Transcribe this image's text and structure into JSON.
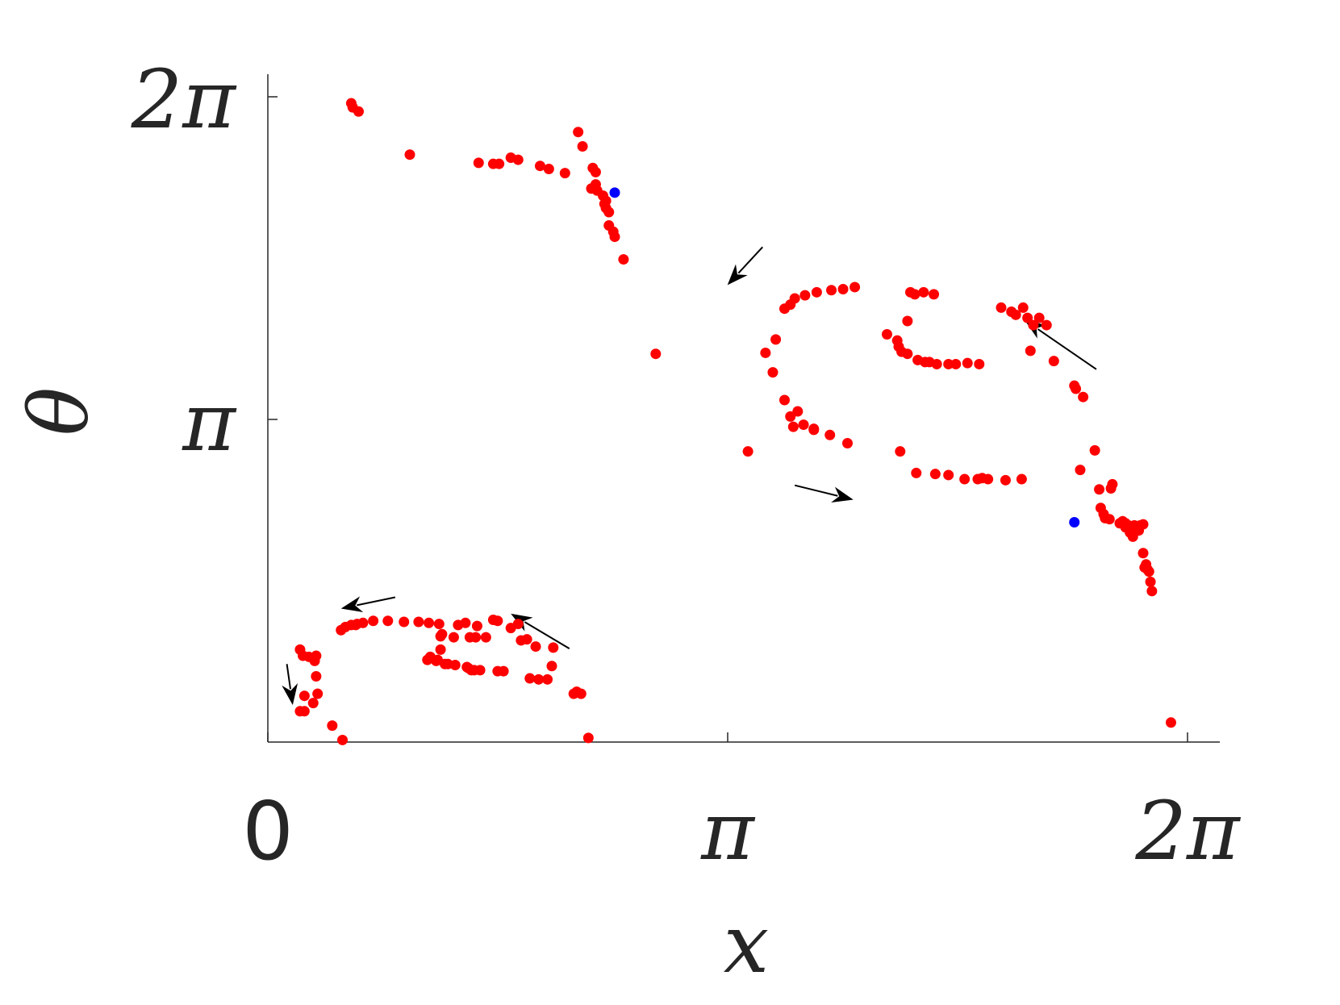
{
  "chart_data": {
    "type": "scatter",
    "title": "",
    "xlabel": "x",
    "ylabel": "θ",
    "xlim": [
      0,
      6.5
    ],
    "ylim": [
      0,
      6.5
    ],
    "grid": false,
    "legend": "none",
    "x_ticks": [
      {
        "value": 0,
        "label": "0"
      },
      {
        "value": 3.14159,
        "label": "π"
      },
      {
        "value": 6.28319,
        "label": "2π"
      }
    ],
    "y_ticks": [
      {
        "value": 3.14159,
        "label": "π"
      },
      {
        "value": 6.28319,
        "label": "2π"
      }
    ],
    "colors": {
      "red_points": "#ff0000",
      "blue_points": "#0000ff",
      "axis": "#262626",
      "arrows": "#000000"
    },
    "series": [
      {
        "color": "#ff0000",
        "points": [
          [
            0.57,
            6.22
          ],
          [
            0.58,
            6.18
          ],
          [
            0.62,
            6.14
          ],
          [
            0.97,
            5.72
          ],
          [
            1.44,
            5.64
          ],
          [
            1.54,
            5.63
          ],
          [
            1.58,
            5.63
          ],
          [
            1.66,
            5.69
          ],
          [
            1.71,
            5.67
          ],
          [
            1.86,
            5.61
          ],
          [
            1.92,
            5.58
          ],
          [
            2.03,
            5.54
          ],
          [
            2.12,
            5.94
          ],
          [
            2.15,
            5.8
          ],
          [
            2.22,
            5.59
          ],
          [
            2.24,
            5.55
          ],
          [
            2.24,
            5.43
          ],
          [
            2.21,
            5.39
          ],
          [
            2.25,
            5.37
          ],
          [
            2.29,
            5.32
          ],
          [
            2.31,
            5.27
          ],
          [
            2.31,
            5.2
          ],
          [
            2.3,
            5.24
          ],
          [
            2.33,
            5.16
          ],
          [
            2.33,
            5.03
          ],
          [
            2.36,
            4.97
          ],
          [
            2.37,
            4.92
          ],
          [
            2.43,
            4.7
          ],
          [
            2.65,
            3.78
          ],
          [
            3.28,
            2.83
          ],
          [
            3.4,
            3.79
          ],
          [
            3.45,
            3.6
          ],
          [
            3.47,
            3.92
          ],
          [
            3.53,
            4.22
          ],
          [
            3.57,
            4.26
          ],
          [
            3.6,
            4.32
          ],
          [
            3.67,
            4.35
          ],
          [
            3.75,
            4.38
          ],
          [
            3.85,
            4.4
          ],
          [
            3.93,
            4.41
          ],
          [
            4.01,
            4.43
          ],
          [
            3.53,
            3.33
          ],
          [
            3.57,
            3.17
          ],
          [
            3.59,
            3.07
          ],
          [
            3.62,
            3.22
          ],
          [
            3.66,
            3.09
          ],
          [
            3.73,
            3.05
          ],
          [
            3.73,
            3.04
          ],
          [
            3.84,
            2.99
          ],
          [
            3.96,
            2.91
          ],
          [
            4.23,
            3.97
          ],
          [
            4.3,
            3.91
          ],
          [
            4.31,
            3.85
          ],
          [
            4.33,
            3.8
          ],
          [
            4.37,
            3.78
          ],
          [
            4.44,
            3.72
          ],
          [
            4.49,
            3.7
          ],
          [
            4.52,
            3.7
          ],
          [
            4.57,
            3.68
          ],
          [
            4.65,
            3.68
          ],
          [
            4.7,
            3.68
          ],
          [
            4.78,
            3.69
          ],
          [
            4.86,
            3.68
          ],
          [
            4.39,
            4.38
          ],
          [
            4.42,
            4.36
          ],
          [
            4.37,
            4.1
          ],
          [
            4.48,
            4.38
          ],
          [
            4.55,
            4.36
          ],
          [
            4.32,
            2.83
          ],
          [
            4.43,
            2.62
          ],
          [
            4.56,
            2.61
          ],
          [
            4.65,
            2.6
          ],
          [
            4.76,
            2.56
          ],
          [
            4.85,
            2.56
          ],
          [
            4.88,
            2.57
          ],
          [
            4.92,
            2.56
          ],
          [
            5.04,
            2.55
          ],
          [
            5.15,
            2.56
          ],
          [
            5.01,
            4.23
          ],
          [
            5.08,
            4.19
          ],
          [
            5.11,
            4.16
          ],
          [
            5.16,
            4.23
          ],
          [
            5.19,
            4.13
          ],
          [
            5.23,
            4.06
          ],
          [
            5.27,
            4.13
          ],
          [
            5.32,
            4.06
          ],
          [
            5.21,
            3.81
          ],
          [
            5.37,
            3.71
          ],
          [
            5.51,
            3.47
          ],
          [
            5.52,
            3.44
          ],
          [
            5.57,
            3.36
          ],
          [
            5.65,
            2.84
          ],
          [
            5.55,
            2.65
          ],
          [
            5.68,
            2.46
          ],
          [
            5.69,
            2.28
          ],
          [
            5.71,
            2.22
          ],
          [
            5.72,
            2.18
          ],
          [
            5.75,
            2.17
          ],
          [
            5.82,
            2.13
          ],
          [
            5.84,
            2.15
          ],
          [
            5.86,
            2.09
          ],
          [
            5.76,
            2.47
          ],
          [
            5.77,
            2.51
          ],
          [
            5.88,
            2.11
          ],
          [
            5.91,
            2.06
          ],
          [
            5.89,
            2.04
          ],
          [
            5.91,
            2.0
          ],
          [
            5.95,
            2.06
          ],
          [
            5.96,
            2.11
          ],
          [
            5.86,
            2.13
          ],
          [
            5.92,
            2.11
          ],
          [
            5.98,
            2.12
          ],
          [
            5.98,
            1.84
          ],
          [
            6.0,
            1.73
          ],
          [
            5.99,
            1.7
          ],
          [
            6.01,
            1.68
          ],
          [
            6.02,
            1.66
          ],
          [
            6.04,
            1.47
          ],
          [
            6.03,
            1.56
          ],
          [
            6.17,
            0.19
          ],
          [
            0.22,
            0.9
          ],
          [
            0.24,
            0.84
          ],
          [
            0.28,
            0.83
          ],
          [
            0.33,
            0.84
          ],
          [
            0.32,
            0.79
          ],
          [
            0.25,
            0.45
          ],
          [
            0.22,
            0.3
          ],
          [
            0.25,
            0.3
          ],
          [
            0.31,
            0.38
          ],
          [
            0.34,
            0.47
          ],
          [
            0.44,
            0.16
          ],
          [
            0.51,
            0.02
          ],
          [
            0.33,
            0.64
          ],
          [
            0.5,
            1.09
          ],
          [
            0.53,
            1.12
          ],
          [
            0.57,
            1.14
          ],
          [
            0.6,
            1.14
          ],
          [
            0.61,
            1.15
          ],
          [
            0.65,
            1.16
          ],
          [
            0.72,
            1.18
          ],
          [
            0.82,
            1.18
          ],
          [
            0.93,
            1.17
          ],
          [
            1.03,
            1.17
          ],
          [
            1.1,
            1.16
          ],
          [
            1.17,
            1.15
          ],
          [
            1.3,
            1.14
          ],
          [
            1.35,
            1.16
          ],
          [
            1.43,
            1.13
          ],
          [
            1.57,
            1.18
          ],
          [
            1.54,
            1.19
          ],
          [
            1.66,
            1.11
          ],
          [
            1.71,
            1.15
          ],
          [
            1.09,
            0.8
          ],
          [
            1.11,
            0.83
          ],
          [
            1.15,
            0.79
          ],
          [
            1.23,
            0.76
          ],
          [
            1.36,
            0.73
          ],
          [
            1.41,
            0.7
          ],
          [
            1.45,
            0.7
          ],
          [
            1.57,
            0.69
          ],
          [
            1.61,
            0.69
          ],
          [
            1.79,
            0.62
          ],
          [
            1.85,
            0.61
          ],
          [
            1.91,
            0.61
          ],
          [
            1.19,
            1.05
          ],
          [
            1.18,
            0.9
          ],
          [
            1.16,
            0.8
          ],
          [
            1.21,
            0.76
          ],
          [
            1.28,
            0.75
          ],
          [
            1.37,
            0.72
          ],
          [
            1.39,
            0.7
          ],
          [
            1.18,
            1.03
          ],
          [
            1.27,
            1.02
          ],
          [
            1.38,
            1.02
          ],
          [
            1.42,
            1.02
          ],
          [
            1.49,
            1.02
          ],
          [
            1.73,
            0.99
          ],
          [
            1.77,
            1.0
          ],
          [
            1.83,
            0.93
          ],
          [
            1.94,
            0.74
          ],
          [
            1.95,
            0.92
          ],
          [
            2.09,
            0.47
          ],
          [
            2.11,
            0.49
          ],
          [
            2.14,
            0.47
          ],
          [
            2.19,
            0.04
          ]
        ]
      },
      {
        "color": "#0000ff",
        "points": [
          [
            2.37,
            5.35
          ],
          [
            5.51,
            2.14
          ]
        ]
      }
    ],
    "annotations": [
      {
        "type": "arrow",
        "from": [
          3.38,
          4.82
        ],
        "to": [
          3.14,
          4.45
        ]
      },
      {
        "type": "arrow",
        "from": [
          5.66,
          3.63
        ],
        "to": [
          5.17,
          4.11
        ]
      },
      {
        "type": "arrow",
        "from": [
          3.6,
          2.5
        ],
        "to": [
          4.0,
          2.36
        ]
      },
      {
        "type": "arrow",
        "from": [
          0.87,
          1.41
        ],
        "to": [
          0.5,
          1.3
        ]
      },
      {
        "type": "arrow",
        "from": [
          2.06,
          0.91
        ],
        "to": [
          1.66,
          1.25
        ]
      },
      {
        "type": "arrow",
        "from": [
          0.13,
          0.76
        ],
        "to": [
          0.17,
          0.36
        ]
      }
    ]
  }
}
